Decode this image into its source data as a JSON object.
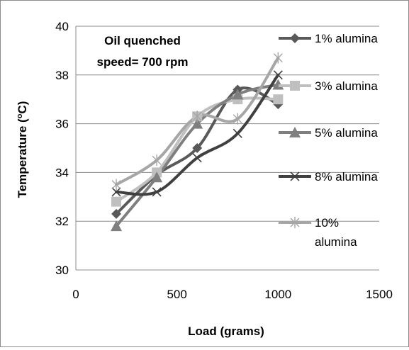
{
  "chart_data": {
    "type": "scatter",
    "title_lines": [
      "Oil quenched",
      "speed= 700 rpm"
    ],
    "xlabel": "Load (grams)",
    "ylabel": "Temperature (",
    "ylabel_sup": "o",
    "ylabel_tail": "C)",
    "xlim": [
      0,
      1500
    ],
    "ylim": [
      30,
      40
    ],
    "xticks": [
      "0",
      "500",
      "1000",
      "1500"
    ],
    "yticks": [
      "30",
      "32",
      "34",
      "36",
      "38",
      "40"
    ],
    "grid": "horizontal",
    "legend_position": "right",
    "smoothed": true,
    "series": [
      {
        "name": "1% alumina",
        "marker": "diamond",
        "color": "#595959",
        "x": [
          200,
          400,
          600,
          800,
          1000
        ],
        "y": [
          32.3,
          33.9,
          35.0,
          37.4,
          36.8
        ]
      },
      {
        "name": "3% alumina",
        "marker": "square",
        "color": "#bfbfbf",
        "x": [
          200,
          400,
          600,
          800,
          1000
        ],
        "y": [
          32.8,
          34.0,
          36.3,
          37.0,
          37.0
        ]
      },
      {
        "name": "5% alumina",
        "marker": "triangle",
        "color": "#7f7f7f",
        "x": [
          200,
          400,
          600,
          800,
          1000
        ],
        "y": [
          31.8,
          33.8,
          36.0,
          37.2,
          37.6
        ]
      },
      {
        "name": "8% alumina",
        "marker": "x",
        "color": "#404040",
        "x": [
          200,
          400,
          600,
          800,
          1000
        ],
        "y": [
          33.2,
          33.2,
          34.6,
          35.6,
          38.0
        ]
      },
      {
        "name": "10%\nalumina",
        "marker": "star",
        "color": "#a6a6a6",
        "x": [
          200,
          400,
          600,
          800,
          1000
        ],
        "y": [
          33.5,
          34.5,
          36.3,
          36.2,
          38.7
        ]
      }
    ]
  }
}
